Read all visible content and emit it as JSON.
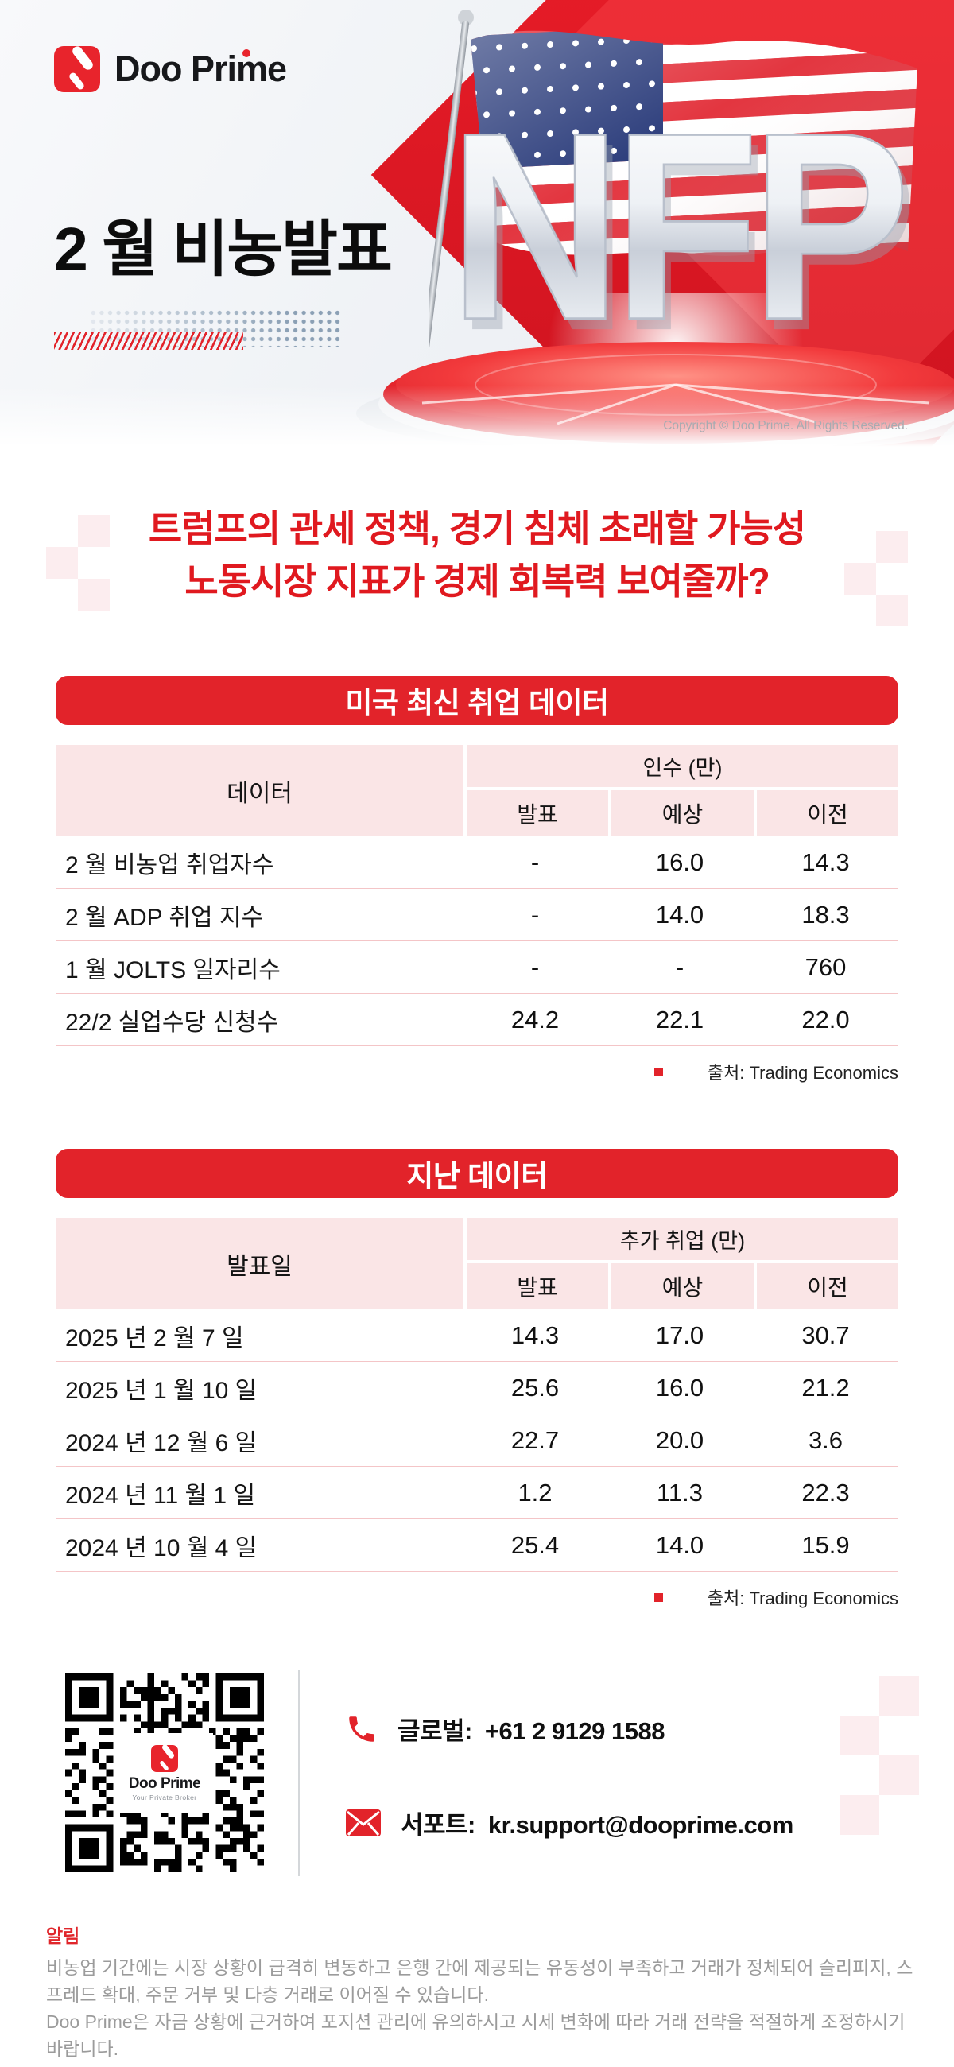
{
  "brand": {
    "name": "Doo Prime",
    "tagline": "Your Private Broker"
  },
  "colors": {
    "primary_red": "#e2232a",
    "headline_red": "#e0191f",
    "table_pink": "#fae5e6",
    "row_divider_pink": "#f4c5c7",
    "text_dark": "#141414",
    "muted_gray": "#9b9b9b",
    "copyright_gray": "#a7abb1",
    "flag_blue": "#2e3f7d"
  },
  "hero": {
    "title": "2 월 비농발표",
    "graphic_text": "NFP",
    "copyright": "Copyright © Doo Prime. All Rights Reserved."
  },
  "headline": {
    "line1": "트럼프의 관세 정책, 경기 침체 초래할 가능성",
    "line2": "노동시장 지표가 경제 회복력 보여줄까?"
  },
  "tables": [
    {
      "title": "미국 최신 취업 데이터",
      "col_label": "데이터",
      "group_label": "인수 (만)",
      "sub_headers": [
        "발표",
        "예상",
        "이전"
      ],
      "rows": [
        [
          "2 월 비농업 취업자수",
          "-",
          "16.0",
          "14.3"
        ],
        [
          "2 월 ADP 취업 지수",
          "-",
          "14.0",
          "18.3"
        ],
        [
          "1 월 JOLTS 일자리수",
          "-",
          "-",
          "760"
        ],
        [
          "22/2 실업수당 신청수",
          "24.2",
          "22.1",
          "22.0"
        ]
      ],
      "source": "출처: Trading Economics"
    },
    {
      "title": "지난 데이터",
      "col_label": "발표일",
      "group_label": "추가 취업 (만)",
      "sub_headers": [
        "발표",
        "예상",
        "이전"
      ],
      "rows": [
        [
          "2025 년 2 월 7 일",
          "14.3",
          "17.0",
          "30.7"
        ],
        [
          "2025 년 1 월 10 일",
          "25.6",
          "16.0",
          "21.2"
        ],
        [
          "2024 년 12 월 6 일",
          "22.7",
          "20.0",
          "3.6"
        ],
        [
          "2024 년 11 월 1 일",
          "1.2",
          "11.3",
          "22.3"
        ],
        [
          "2024 년 10 월 4 일",
          "25.4",
          "14.0",
          "15.9"
        ]
      ],
      "source": "출처: Trading Economics"
    }
  ],
  "contact": {
    "phone_label": "글로벌:",
    "phone_value": "+61 2 9129 1588",
    "support_label": "서포트:",
    "support_value": "kr.support@dooprime.com"
  },
  "notice": {
    "title": "알림",
    "p1": "비농업 기간에는 시장 상황이 급격히 변동하고 은행 간에 제공되는 유동성이 부족하고 거래가 정체되어 슬리피지, 스프레드 확대, 주문 거부 및 다층 거래로 이어질 수 있습니다.",
    "p2": "Doo Prime은 자금 상황에 근거하여 포지션 관리에 유의하시고 시세 변화에 따라 거래 전략을 적절하게 조정하시기 바랍니다."
  }
}
